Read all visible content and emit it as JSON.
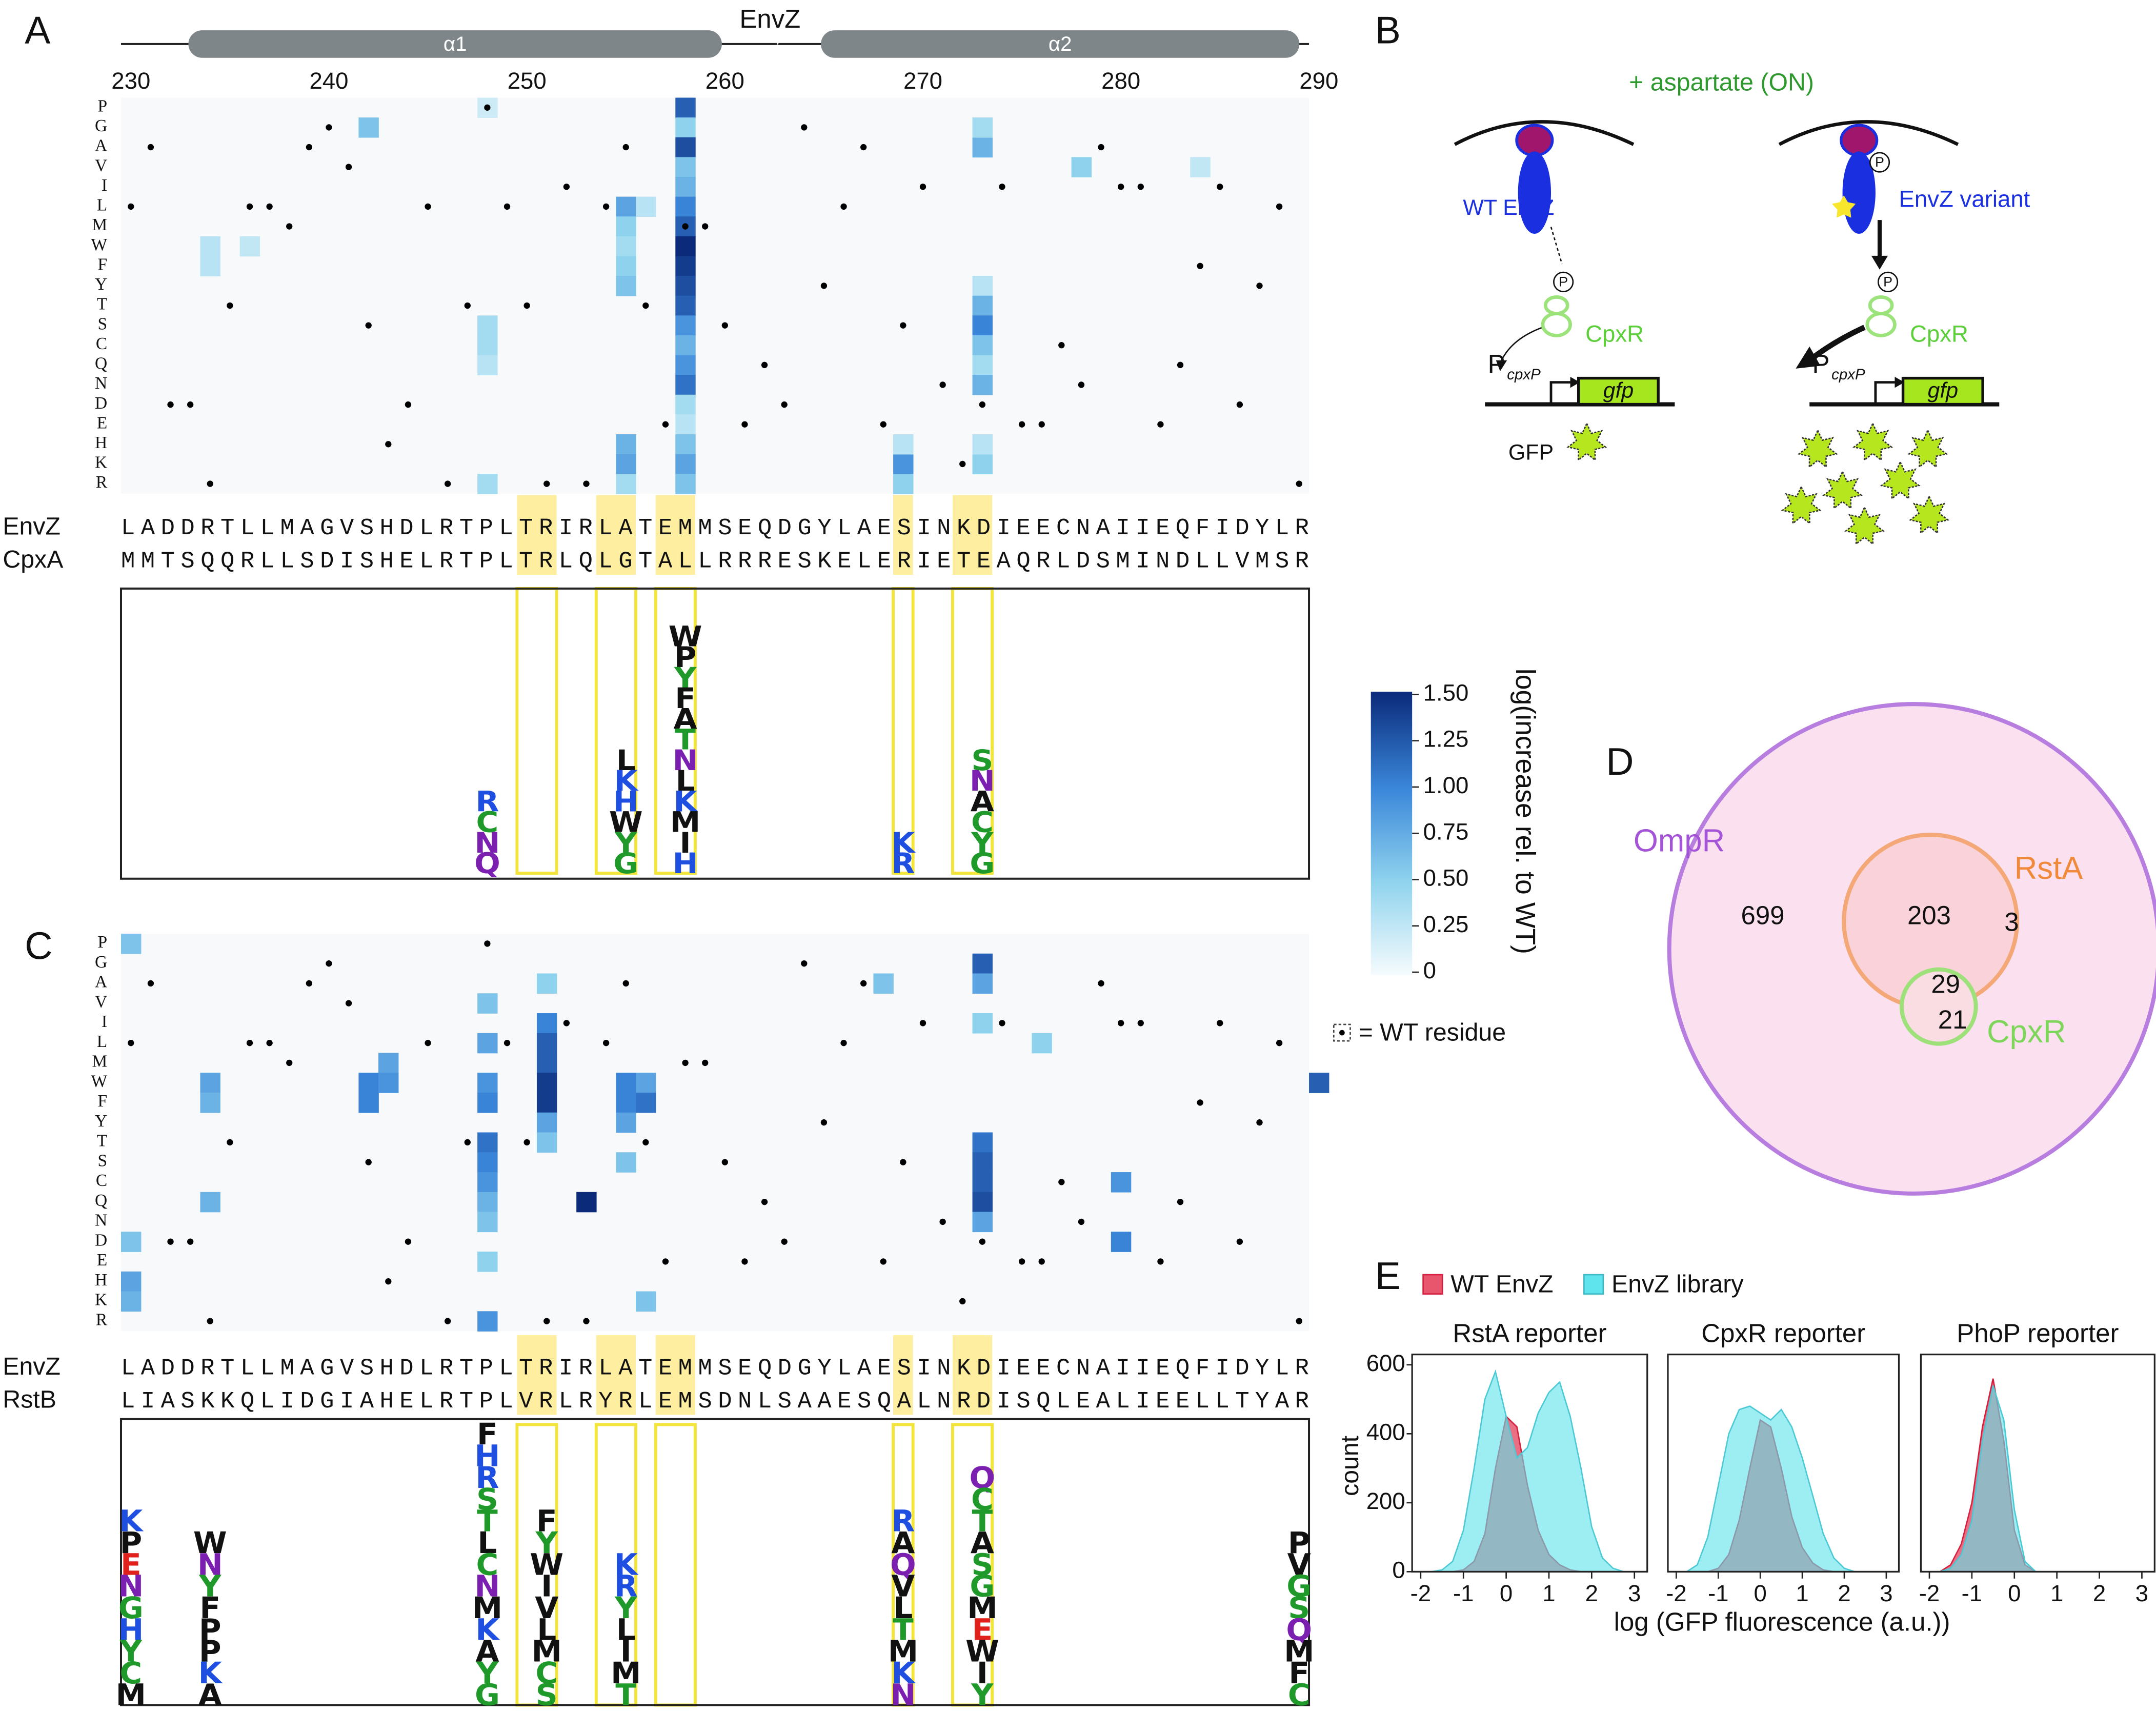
{
  "panel_labels": [
    "A",
    "B",
    "C",
    "D",
    "E"
  ],
  "protein": "EnvZ",
  "helices": [
    "α1",
    "α2"
  ],
  "position_ticks": [
    230,
    240,
    250,
    260,
    270,
    280,
    290
  ],
  "residues": [
    "P",
    "G",
    "A",
    "V",
    "I",
    "L",
    "M",
    "W",
    "F",
    "Y",
    "T",
    "S",
    "C",
    "Q",
    "N",
    "D",
    "E",
    "H",
    "K",
    "R"
  ],
  "highlight_positions": [
    250,
    251,
    254,
    255,
    257,
    258,
    269,
    272,
    273
  ],
  "panel_a": {
    "sequences": [
      {
        "name": "EnvZ",
        "seq": "LADDRTLLMAGVSHDLRTPLTRIRLATEMMSEQDGYLAESINKDIEECNAIIEQFIDYLR"
      },
      {
        "name": "CpxA",
        "seq": "MMTSQQRLLSDISHELRTPLTRLQLGTALLRRRESKELERIETEAQRLDSMINDLLVMSR"
      }
    ],
    "cells": [
      [
        258,
        "P",
        1.2
      ],
      [
        258,
        "G",
        0.5
      ],
      [
        258,
        "A",
        1.3
      ],
      [
        258,
        "V",
        0.6
      ],
      [
        258,
        "I",
        0.7
      ],
      [
        258,
        "L",
        1.0
      ],
      [
        258,
        "M",
        1.2
      ],
      [
        258,
        "W",
        1.5
      ],
      [
        258,
        "F",
        1.4
      ],
      [
        258,
        "Y",
        1.3
      ],
      [
        258,
        "T",
        1.2
      ],
      [
        258,
        "S",
        0.9
      ],
      [
        258,
        "C",
        0.7
      ],
      [
        258,
        "Q",
        0.9
      ],
      [
        258,
        "N",
        1.1
      ],
      [
        258,
        "D",
        0.4
      ],
      [
        258,
        "E",
        0.3
      ],
      [
        258,
        "H",
        0.6
      ],
      [
        258,
        "K",
        0.8
      ],
      [
        258,
        "R",
        0.6
      ],
      [
        255,
        "L",
        0.8
      ],
      [
        255,
        "M",
        0.5
      ],
      [
        255,
        "W",
        0.4
      ],
      [
        255,
        "F",
        0.5
      ],
      [
        255,
        "Y",
        0.6
      ],
      [
        255,
        "H",
        0.7
      ],
      [
        255,
        "K",
        0.8
      ],
      [
        255,
        "R",
        0.4
      ],
      [
        273,
        "A",
        0.7
      ],
      [
        273,
        "G",
        0.4
      ],
      [
        273,
        "Y",
        0.3
      ],
      [
        273,
        "T",
        0.7
      ],
      [
        273,
        "S",
        1.0
      ],
      [
        273,
        "C",
        0.6
      ],
      [
        273,
        "Q",
        0.4
      ],
      [
        273,
        "N",
        0.7
      ],
      [
        273,
        "K",
        0.5
      ],
      [
        273,
        "H",
        0.3
      ],
      [
        269,
        "K",
        0.9
      ],
      [
        269,
        "R",
        0.5
      ],
      [
        269,
        "H",
        0.3
      ],
      [
        242,
        "G",
        0.6
      ],
      [
        248,
        "S",
        0.4
      ],
      [
        248,
        "C",
        0.4
      ],
      [
        248,
        "R",
        0.4
      ],
      [
        248,
        "Q",
        0.3
      ],
      [
        248,
        "P",
        0.2
      ],
      [
        234,
        "W",
        0.3
      ],
      [
        234,
        "F",
        0.3
      ],
      [
        236,
        "W",
        0.25
      ],
      [
        278,
        "V",
        0.5
      ],
      [
        284,
        "V",
        0.25
      ],
      [
        256,
        "L",
        0.3
      ]
    ],
    "logo": [
      {
        "position": 248,
        "letters": [
          "R",
          "C",
          "N",
          "Q"
        ]
      },
      {
        "position": 255,
        "letters": [
          "L",
          "K",
          "H",
          "W",
          "Y",
          "G"
        ]
      },
      {
        "position": 258,
        "letters": [
          "W",
          "P",
          "Y",
          "F",
          "A",
          "T",
          "N",
          "L",
          "K",
          "M",
          "I",
          "H"
        ]
      },
      {
        "position": 269,
        "letters": [
          "K",
          "R"
        ]
      },
      {
        "position": 273,
        "letters": [
          "S",
          "N",
          "A",
          "C",
          "Y",
          "G"
        ]
      }
    ]
  },
  "panel_c": {
    "sequences": [
      {
        "name": "EnvZ",
        "seq": "LADDRTLLMAGVSHDLRTPLTRIRLATEMMSEQDGYLAESINKDIEECNAIIEQFIDYLR"
      },
      {
        "name": "RstB",
        "seq": "LIASKKQLIDGIAHELRTPLVRLRYRLEMSDNLSAAESQALNRDISQLEALIEELLTYAR"
      }
    ],
    "cells": [
      [
        251,
        "I",
        1.0
      ],
      [
        251,
        "L",
        1.2
      ],
      [
        251,
        "M",
        1.2
      ],
      [
        251,
        "W",
        1.4
      ],
      [
        251,
        "F",
        1.4
      ],
      [
        251,
        "Y",
        0.8
      ],
      [
        251,
        "T",
        0.6
      ],
      [
        251,
        "A",
        0.5
      ],
      [
        248,
        "V",
        0.6
      ],
      [
        248,
        "L",
        0.8
      ],
      [
        248,
        "W",
        0.9
      ],
      [
        248,
        "F",
        1.0
      ],
      [
        248,
        "T",
        1.1
      ],
      [
        248,
        "S",
        1.0
      ],
      [
        248,
        "C",
        0.9
      ],
      [
        248,
        "Q",
        0.7
      ],
      [
        248,
        "N",
        0.6
      ],
      [
        248,
        "R",
        0.9
      ],
      [
        248,
        "E",
        0.5
      ],
      [
        273,
        "G",
        1.2
      ],
      [
        273,
        "A",
        0.8
      ],
      [
        273,
        "I",
        0.5
      ],
      [
        273,
        "T",
        1.1
      ],
      [
        273,
        "S",
        1.2
      ],
      [
        273,
        "C",
        1.2
      ],
      [
        273,
        "Q",
        1.3
      ],
      [
        273,
        "N",
        0.8
      ],
      [
        253,
        "Q",
        1.5
      ],
      [
        255,
        "W",
        1.0
      ],
      [
        255,
        "F",
        1.0
      ],
      [
        255,
        "Y",
        0.8
      ],
      [
        255,
        "S",
        0.6
      ],
      [
        256,
        "W",
        0.8
      ],
      [
        256,
        "F",
        1.1
      ],
      [
        256,
        "K",
        0.6
      ],
      [
        242,
        "W",
        1.0
      ],
      [
        242,
        "F",
        1.0
      ],
      [
        243,
        "M",
        0.8
      ],
      [
        243,
        "W",
        0.9
      ],
      [
        280,
        "C",
        0.9
      ],
      [
        280,
        "D",
        1.0
      ],
      [
        290,
        "W",
        1.2
      ],
      [
        230,
        "P",
        0.6
      ],
      [
        230,
        "D",
        0.6
      ],
      [
        230,
        "H",
        0.8
      ],
      [
        230,
        "K",
        0.7
      ],
      [
        234,
        "W",
        0.8
      ],
      [
        234,
        "F",
        0.7
      ],
      [
        234,
        "Q",
        0.7
      ],
      [
        268,
        "A",
        0.6
      ],
      [
        276,
        "L",
        0.5
      ]
    ],
    "logo": [
      {
        "position": 230,
        "letters": [
          "K",
          "P",
          "E",
          "N",
          "G",
          "H",
          "Y",
          "C",
          "M"
        ]
      },
      {
        "position": 234,
        "letters": [
          "W",
          "N",
          "Y",
          "F",
          "P",
          "P",
          "K",
          "A"
        ]
      },
      {
        "position": 248,
        "letters": [
          "F",
          "H",
          "R",
          "S",
          "T",
          "L",
          "C",
          "N",
          "M",
          "K",
          "A",
          "Y",
          "G"
        ]
      },
      {
        "position": 251,
        "letters": [
          "F",
          "Y",
          "W",
          "I",
          "V",
          "L",
          "M",
          "C",
          "S"
        ]
      },
      {
        "position": 255,
        "letters": [
          "K",
          "R",
          "Y",
          "L",
          "I",
          "M",
          "T"
        ]
      },
      {
        "position": 269,
        "letters": [
          "R",
          "A",
          "Q",
          "V",
          "L",
          "T",
          "M",
          "K",
          "N"
        ]
      },
      {
        "position": 273,
        "letters": [
          "Q",
          "C",
          "T",
          "A",
          "S",
          "G",
          "M",
          "E",
          "W",
          "I",
          "Y"
        ]
      },
      {
        "position": 289,
        "letters": [
          "P",
          "V",
          "G",
          "S",
          "Q",
          "M",
          "F",
          "C"
        ]
      }
    ]
  },
  "colorbar": {
    "label": "log(increase rel. to WT)",
    "lim": [
      0,
      1.5
    ],
    "ticks": [
      {
        "value": 1.5,
        "label": "1.50"
      },
      1.25,
      {
        "value": 1.0,
        "label": "1.00"
      },
      0.75,
      {
        "value": 0.5,
        "label": "0.50"
      },
      0.25,
      0
    ]
  },
  "wt_note": "= WT residue",
  "panel_b": {
    "condition": "+ aspartate (ON)",
    "wt": "WT EnvZ",
    "variant": "EnvZ variant",
    "regulator": "CpxR",
    "promoter": "P",
    "promoter_sub": "cpxP",
    "gene": "gfp",
    "product": "GFP",
    "phospho": "P"
  },
  "venn": {
    "sets": [
      "OmpR",
      "RstA",
      "CpxR"
    ],
    "counts": [
      699,
      203,
      3,
      29,
      21
    ]
  },
  "panel_e": {
    "series": [
      {
        "name": "WT EnvZ",
        "color": "#e8566e"
      },
      {
        "name": "EnvZ library",
        "color": "#5fe3ec"
      }
    ],
    "ylabel": "count",
    "xlabel": "log (GFP fluorescence (a.u.))",
    "x": [
      -2,
      -1.75,
      -1.5,
      -1.25,
      -1,
      -0.75,
      -0.5,
      -0.25,
      0,
      0.25,
      0.5,
      0.75,
      1,
      1.25,
      1.5,
      1.75,
      2,
      2.25,
      2.5,
      2.75,
      3
    ],
    "xlim": [
      -2.2,
      3.3
    ],
    "xticks": [
      -2,
      -1,
      0,
      1,
      2,
      3
    ],
    "ylim": [
      0,
      630
    ],
    "yticks": [
      0,
      200,
      400,
      600
    ],
    "panels": [
      {
        "title": "RstA reporter",
        "values": [
          [
            0,
            0,
            0,
            0,
            5,
            30,
            110,
            300,
            450,
            420,
            250,
            120,
            50,
            20,
            5,
            0,
            0,
            0,
            0,
            0,
            0
          ],
          [
            0,
            0,
            5,
            30,
            120,
            300,
            500,
            580,
            450,
            330,
            360,
            460,
            520,
            550,
            450,
            300,
            130,
            40,
            10,
            0,
            0
          ]
        ]
      },
      {
        "title": "CpxR reporter",
        "values": [
          [
            0,
            0,
            0,
            0,
            10,
            50,
            150,
            300,
            440,
            420,
            300,
            160,
            70,
            25,
            5,
            0,
            0,
            0,
            0,
            0,
            0
          ],
          [
            0,
            0,
            20,
            100,
            250,
            400,
            470,
            480,
            460,
            440,
            470,
            420,
            330,
            220,
            110,
            40,
            10,
            0,
            0,
            0,
            0
          ]
        ]
      },
      {
        "title": "PhoP reporter",
        "values": [
          [
            0,
            0,
            20,
            80,
            200,
            420,
            560,
            380,
            120,
            20,
            0,
            0,
            0,
            0,
            0,
            0,
            0,
            0,
            0,
            0,
            0
          ],
          [
            0,
            0,
            10,
            50,
            150,
            380,
            540,
            440,
            180,
            30,
            0,
            0,
            0,
            0,
            0,
            0,
            0,
            0,
            0,
            0,
            0
          ]
        ]
      }
    ]
  }
}
